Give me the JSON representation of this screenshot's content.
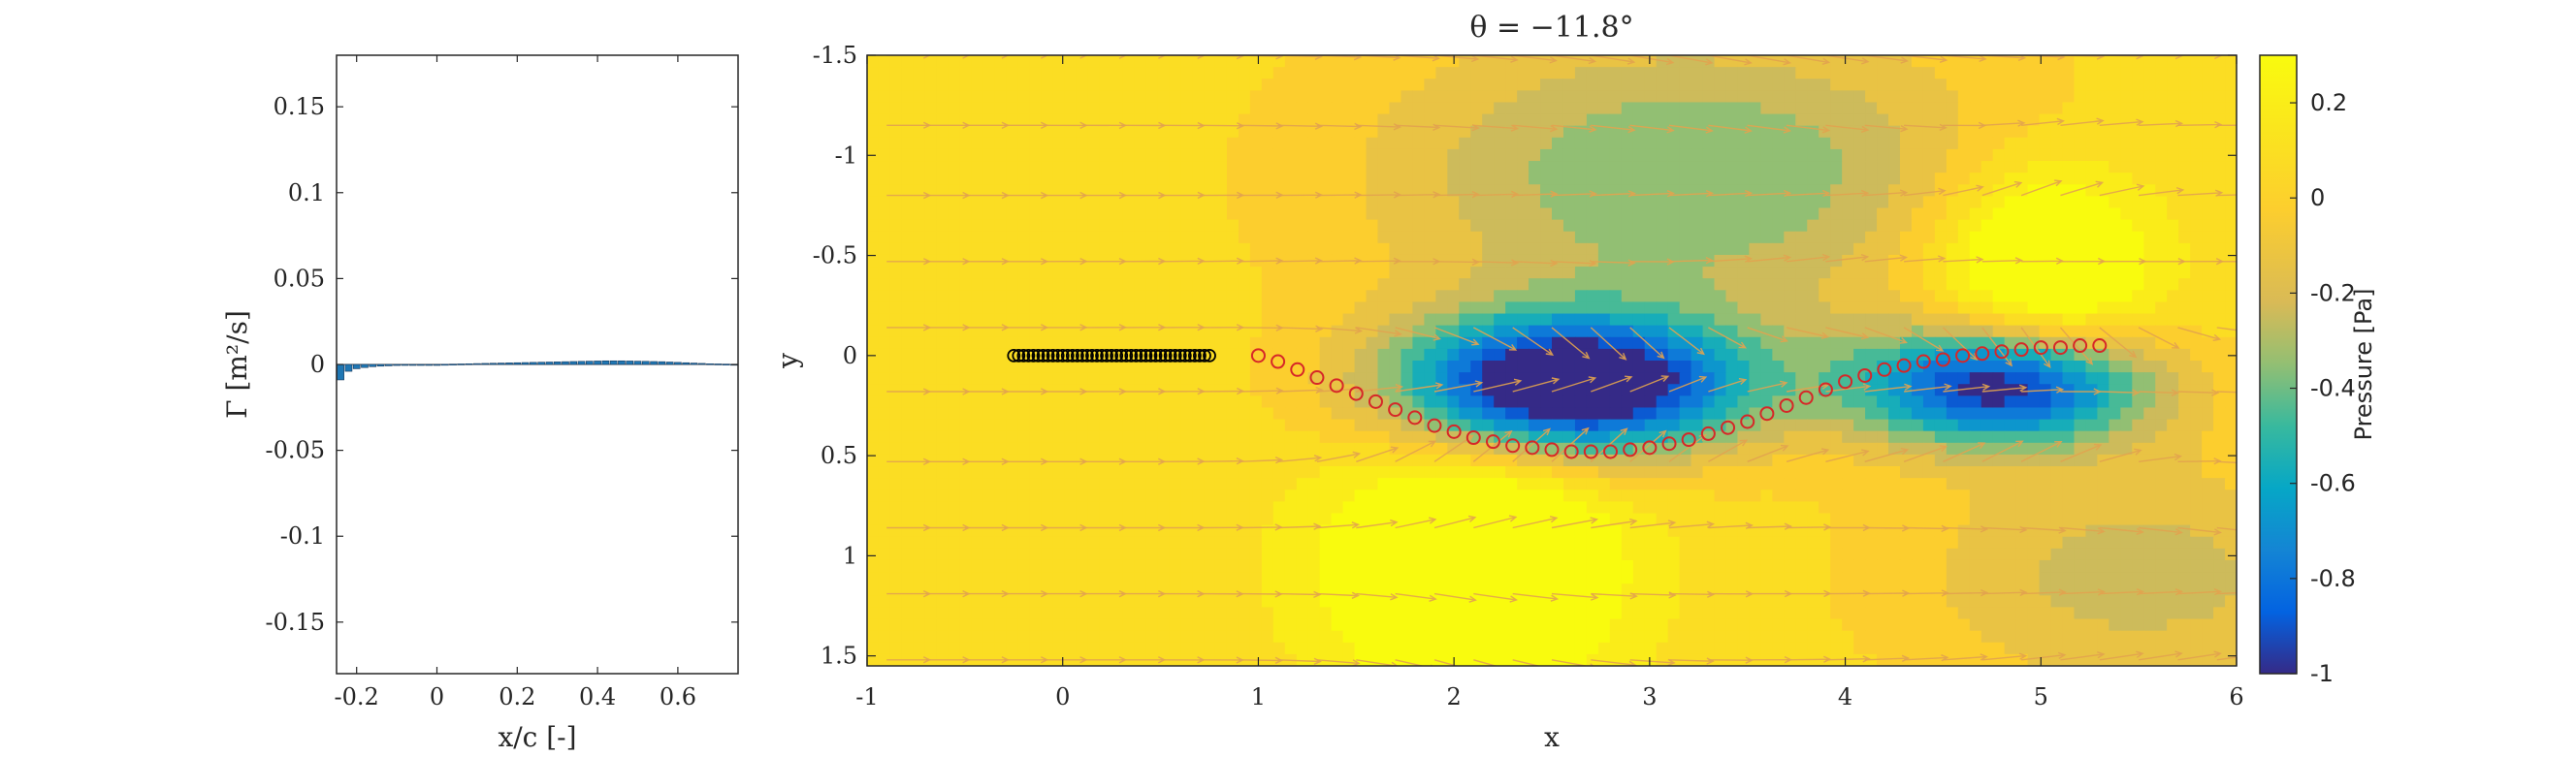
{
  "chart_data": [
    {
      "type": "bar",
      "title": "",
      "xlabel": "x/c [-]",
      "ylabel": "Γ [m²/s]",
      "xlim": [
        -0.25,
        0.75
      ],
      "ylim": [
        -0.18,
        0.18
      ],
      "xticks": [
        "-0.2",
        "0",
        "0.2",
        "0.4",
        "0.6"
      ],
      "yticks": [
        "0.15",
        "0.1",
        "0.05",
        "0",
        "-0.05",
        "-0.1",
        "-0.15"
      ],
      "bar_color": "#1f77b4",
      "bars": {
        "x": [
          -0.24,
          -0.22,
          -0.2,
          -0.18,
          -0.16,
          -0.14,
          -0.12,
          -0.1,
          -0.08,
          -0.06,
          -0.04,
          -0.02,
          0,
          0.02,
          0.04,
          0.06,
          0.08,
          0.1,
          0.12,
          0.14,
          0.16,
          0.18,
          0.2,
          0.22,
          0.24,
          0.26,
          0.28,
          0.3,
          0.32,
          0.34,
          0.36,
          0.38,
          0.4,
          0.42,
          0.44,
          0.46,
          0.48,
          0.5,
          0.52,
          0.54,
          0.56,
          0.58,
          0.6,
          0.62,
          0.64,
          0.66,
          0.68,
          0.7,
          0.72,
          0.74
        ],
        "values": [
          -0.009,
          -0.004,
          -0.0025,
          -0.0018,
          -0.0013,
          -0.001,
          -0.0008,
          -0.0006,
          -0.0004,
          -0.0003,
          -0.0002,
          -0.0001,
          0.0,
          0.0001,
          0.0002,
          0.0003,
          0.0004,
          0.0005,
          0.0006,
          0.0007,
          0.0008,
          0.0009,
          0.001,
          0.0011,
          0.0012,
          0.0013,
          0.0014,
          0.0015,
          0.0016,
          0.0017,
          0.0018,
          0.0019,
          0.002,
          0.0021,
          0.0021,
          0.0021,
          0.002,
          0.0019,
          0.0018,
          0.0017,
          0.0016,
          0.0014,
          0.0012,
          0.001,
          0.0008,
          0.0006,
          0.0004,
          0.0003,
          0.0002,
          0.0001
        ]
      }
    },
    {
      "type": "heatmap",
      "title": "θ = −11.8°",
      "xlabel": "x",
      "ylabel": "y",
      "xlim": [
        -1,
        6
      ],
      "ylim": [
        -1.5,
        1.55
      ],
      "y_reversed": true,
      "xticks": [
        "-1",
        "0",
        "1",
        "2",
        "3",
        "4",
        "5",
        "6"
      ],
      "yticks": [
        "-1.5",
        "-1",
        "-0.5",
        "0",
        "0.5",
        "1",
        "1.5"
      ],
      "colorbar": {
        "label": "Pressure [Pa]",
        "range": [
          -1,
          0.3
        ],
        "ticks": [
          "0.2",
          "0",
          "-0.2",
          "-0.4",
          "-0.6",
          "-0.8",
          "-1"
        ],
        "colormap": "parula"
      },
      "field_sources": [
        {
          "x": 2.6,
          "y": 0.15,
          "strength": -1.25,
          "sx": 0.9,
          "sy": 0.35
        },
        {
          "x": 4.8,
          "y": 0.15,
          "strength": -1.05,
          "sx": 0.75,
          "sy": 0.3
        },
        {
          "x": 3.2,
          "y": -0.9,
          "strength": -0.45,
          "sx": 1.6,
          "sy": 0.75
        },
        {
          "x": 2.1,
          "y": 1.05,
          "strength": 0.55,
          "sx": 0.7,
          "sy": 0.6
        },
        {
          "x": 5.0,
          "y": -0.45,
          "strength": 0.5,
          "sx": 0.55,
          "sy": 0.5
        },
        {
          "x": 5.5,
          "y": 1.1,
          "strength": -0.3,
          "sx": 1.2,
          "sy": 0.6
        }
      ],
      "field_background": 0.05,
      "plate_markers": {
        "color": "#000000",
        "x": [
          -0.25,
          -0.225,
          -0.2,
          -0.175,
          -0.15,
          -0.125,
          -0.1,
          -0.075,
          -0.05,
          -0.025,
          0,
          0.025,
          0.05,
          0.075,
          0.1,
          0.125,
          0.15,
          0.175,
          0.2,
          0.225,
          0.25,
          0.275,
          0.3,
          0.325,
          0.35,
          0.375,
          0.4,
          0.425,
          0.45,
          0.475,
          0.5,
          0.525,
          0.55,
          0.575,
          0.6,
          0.625,
          0.65,
          0.675,
          0.7,
          0.725,
          0.75
        ],
        "y": [
          0,
          0,
          0,
          0,
          0,
          0,
          0,
          0,
          0,
          0,
          0,
          0,
          0,
          0,
          0,
          0,
          0,
          0,
          0,
          0,
          0,
          0,
          0,
          0,
          0,
          0,
          0,
          0,
          0,
          0,
          0,
          0,
          0,
          0,
          0,
          0,
          0,
          0,
          0,
          0,
          0
        ]
      },
      "wake_markers": {
        "color": "#d62728",
        "x": [
          1.0,
          1.1,
          1.2,
          1.3,
          1.4,
          1.5,
          1.6,
          1.7,
          1.8,
          1.9,
          2.0,
          2.1,
          2.2,
          2.3,
          2.4,
          2.5,
          2.6,
          2.7,
          2.8,
          2.9,
          3.0,
          3.1,
          3.2,
          3.3,
          3.4,
          3.5,
          3.6,
          3.7,
          3.8,
          3.9,
          4.0,
          4.1,
          4.2,
          4.3,
          4.4,
          4.5,
          4.6,
          4.7,
          4.8,
          4.9,
          5.0,
          5.1,
          5.2,
          5.3
        ],
        "y": [
          0.0,
          0.03,
          0.07,
          0.11,
          0.15,
          0.19,
          0.23,
          0.27,
          0.31,
          0.35,
          0.38,
          0.41,
          0.43,
          0.45,
          0.46,
          0.47,
          0.48,
          0.48,
          0.48,
          0.47,
          0.46,
          0.44,
          0.42,
          0.39,
          0.36,
          0.33,
          0.29,
          0.25,
          0.21,
          0.17,
          0.13,
          0.1,
          0.07,
          0.05,
          0.03,
          0.02,
          0.0,
          -0.01,
          -0.02,
          -0.03,
          -0.04,
          -0.04,
          -0.05,
          -0.05
        ]
      },
      "quiver": {
        "color": "#e2a34f",
        "rows_y": [
          -1.5,
          -1.15,
          -0.8,
          -0.47,
          -0.14,
          0.18,
          0.53,
          0.86,
          1.19,
          1.52
        ],
        "cols_x": [
          -0.9,
          -0.7,
          -0.5,
          -0.3,
          -0.1,
          0.1,
          0.3,
          0.5,
          0.7,
          0.9,
          1.1,
          1.3,
          1.5,
          1.7,
          1.9,
          2.1,
          2.3,
          2.5,
          2.7,
          2.9,
          3.1,
          3.3,
          3.5,
          3.7,
          3.9,
          4.1,
          4.3,
          4.5,
          4.7,
          4.9,
          5.1,
          5.3,
          5.5,
          5.7,
          5.9
        ]
      }
    }
  ]
}
